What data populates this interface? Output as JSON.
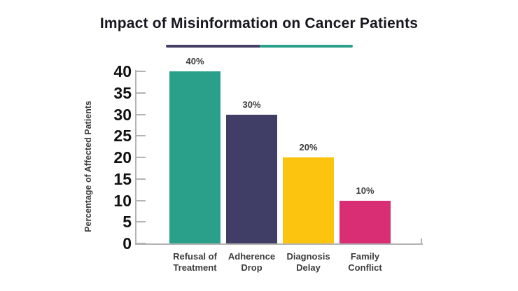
{
  "chart_data": {
    "type": "bar",
    "title": "Impact of Misinformation on Cancer Patients",
    "categories": [
      "Refusal of\nTreatment",
      "Adherence\nDrop",
      "Diagnosis\nDelay",
      "Family\nConflict"
    ],
    "values": [
      40,
      30,
      20,
      10
    ],
    "value_labels": [
      "40%",
      "30%",
      "20%",
      "10%"
    ],
    "bar_colors": [
      "#2aa08a",
      "#403e66",
      "#fcc40e",
      "#d92e74"
    ],
    "xlabel": "",
    "ylabel": "Percentage of Affected Patients",
    "ylim": [
      0,
      40
    ],
    "yticks": [
      0,
      5,
      10,
      15,
      20,
      25,
      30,
      35,
      40
    ],
    "grid": false,
    "legend": "none",
    "axis_color": "#b3b3b3",
    "title_color": "#16161e",
    "label_color": "#3d3d3d"
  },
  "divider": {
    "left_color": "#453f63",
    "right_color": "#2aa08a"
  }
}
